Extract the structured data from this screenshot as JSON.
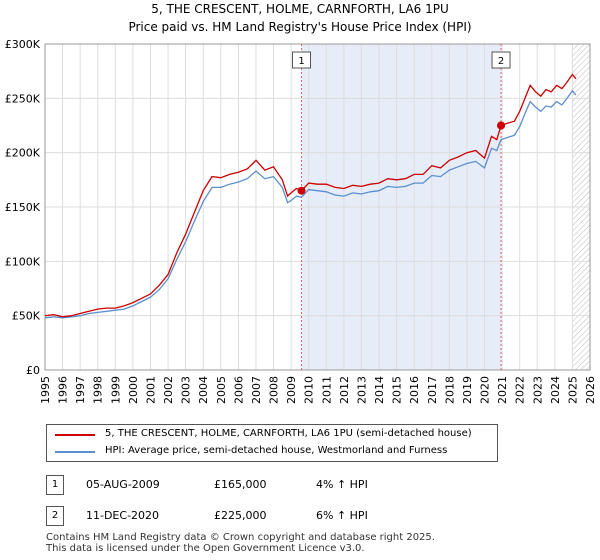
{
  "title_line1": "5, THE CRESCENT, HOLME, CARNFORTH, LA6 1PU",
  "title_line2": "Price paid vs. HM Land Registry's House Price Index (HPI)",
  "colors": {
    "property_line": "#cc0000",
    "hpi_line": "#5b8fcf",
    "shade": "#e6ecf8",
    "grid": "#dddddd",
    "marker_line": "#e06666"
  },
  "chart_data": {
    "type": "line",
    "x_ticks": [
      "1995",
      "1996",
      "1997",
      "1998",
      "1999",
      "2000",
      "2001",
      "2002",
      "2003",
      "2004",
      "2005",
      "2006",
      "2007",
      "2008",
      "2009",
      "2010",
      "2011",
      "2012",
      "2013",
      "2014",
      "2015",
      "2016",
      "2017",
      "2018",
      "2019",
      "2020",
      "2021",
      "2022",
      "2023",
      "2024",
      "2025",
      "2026"
    ],
    "y_ticks": [
      "£0",
      "£50K",
      "£100K",
      "£150K",
      "£200K",
      "£250K",
      "£300K"
    ],
    "xlim": [
      1995,
      2026
    ],
    "ylim": [
      0,
      300000
    ],
    "grid": true,
    "shaded_range": [
      2009.59,
      2020.94
    ],
    "hatched_from": 2025.0,
    "sale_markers": [
      {
        "label": "1",
        "x": 2009.59,
        "y": 165000
      },
      {
        "label": "2",
        "x": 2020.94,
        "y": 225000
      }
    ],
    "series": [
      {
        "name": "5, THE CRESCENT, HOLME, CARNFORTH, LA6 1PU (semi-detached house)",
        "x": [
          1995.0,
          1995.5,
          1996.0,
          1996.5,
          1997.0,
          1997.5,
          1998.0,
          1998.5,
          1999.0,
          1999.5,
          2000.0,
          2000.5,
          2001.0,
          2001.5,
          2002.0,
          2002.5,
          2003.0,
          2003.5,
          2004.0,
          2004.5,
          2005.0,
          2005.5,
          2006.0,
          2006.5,
          2007.0,
          2007.5,
          2008.0,
          2008.5,
          2008.8,
          2009.0,
          2009.3,
          2009.59,
          2010.0,
          2010.5,
          2011.0,
          2011.5,
          2012.0,
          2012.5,
          2013.0,
          2013.5,
          2014.0,
          2014.5,
          2015.0,
          2015.5,
          2016.0,
          2016.5,
          2017.0,
          2017.5,
          2018.0,
          2018.5,
          2019.0,
          2019.5,
          2020.0,
          2020.4,
          2020.7,
          2020.94,
          2021.3,
          2021.7,
          2022.0,
          2022.3,
          2022.6,
          2022.9,
          2023.2,
          2023.5,
          2023.8,
          2024.1,
          2024.4,
          2024.7,
          2025.0,
          2025.2
        ],
        "y": [
          50000,
          51000,
          49000,
          50000,
          52000,
          54000,
          56000,
          57000,
          57000,
          59000,
          62000,
          66000,
          70000,
          78000,
          88000,
          108000,
          125000,
          145000,
          165000,
          178000,
          177000,
          180000,
          182000,
          185000,
          193000,
          184000,
          187000,
          175000,
          160000,
          163000,
          167000,
          165000,
          172000,
          171000,
          171000,
          168000,
          167000,
          170000,
          169000,
          171000,
          172000,
          176000,
          175000,
          176000,
          180000,
          180000,
          188000,
          186000,
          193000,
          196000,
          200000,
          202000,
          195000,
          215000,
          212000,
          225000,
          227000,
          229000,
          238000,
          250000,
          262000,
          256000,
          252000,
          258000,
          256000,
          262000,
          259000,
          265000,
          272000,
          268000
        ]
      },
      {
        "name": "HPI: Average price, semi-detached house, Westmorland and Furness",
        "x": [
          1995.0,
          1995.5,
          1996.0,
          1996.5,
          1997.0,
          1997.5,
          1998.0,
          1998.5,
          1999.0,
          1999.5,
          2000.0,
          2000.5,
          2001.0,
          2001.5,
          2002.0,
          2002.5,
          2003.0,
          2003.5,
          2004.0,
          2004.5,
          2005.0,
          2005.5,
          2006.0,
          2006.5,
          2007.0,
          2007.5,
          2008.0,
          2008.5,
          2008.8,
          2009.0,
          2009.3,
          2009.59,
          2010.0,
          2010.5,
          2011.0,
          2011.5,
          2012.0,
          2012.5,
          2013.0,
          2013.5,
          2014.0,
          2014.5,
          2015.0,
          2015.5,
          2016.0,
          2016.5,
          2017.0,
          2017.5,
          2018.0,
          2018.5,
          2019.0,
          2019.5,
          2020.0,
          2020.4,
          2020.7,
          2020.94,
          2021.3,
          2021.7,
          2022.0,
          2022.3,
          2022.6,
          2022.9,
          2023.2,
          2023.5,
          2023.8,
          2024.1,
          2024.4,
          2024.7,
          2025.0,
          2025.2
        ],
        "y": [
          48000,
          49000,
          48000,
          49000,
          50000,
          52000,
          53000,
          54000,
          55000,
          56000,
          59000,
          63000,
          67000,
          74000,
          84000,
          102000,
          118000,
          137000,
          155000,
          168000,
          168000,
          171000,
          173000,
          176000,
          183000,
          176000,
          178000,
          168000,
          154000,
          156000,
          160000,
          159000,
          166000,
          165000,
          164000,
          161000,
          160000,
          163000,
          162000,
          164000,
          165000,
          169000,
          168000,
          169000,
          172000,
          172000,
          179000,
          178000,
          184000,
          187000,
          190000,
          192000,
          186000,
          204000,
          202000,
          212000,
          214000,
          216000,
          224000,
          236000,
          247000,
          242000,
          238000,
          243000,
          242000,
          247000,
          244000,
          250000,
          257000,
          253000
        ]
      }
    ]
  },
  "legend": {
    "property_label": "5, THE CRESCENT, HOLME, CARNFORTH, LA6 1PU (semi-detached house)",
    "hpi_label": "HPI: Average price, semi-detached house, Westmorland and Furness"
  },
  "sales": [
    {
      "num": "1",
      "date": "05-AUG-2009",
      "price": "£165,000",
      "delta": "4% ↑ HPI"
    },
    {
      "num": "2",
      "date": "11-DEC-2020",
      "price": "£225,000",
      "delta": "6% ↑ HPI"
    }
  ],
  "footer_line1": "Contains HM Land Registry data © Crown copyright and database right 2025.",
  "footer_line2": "This data is licensed under the Open Government Licence v3.0."
}
